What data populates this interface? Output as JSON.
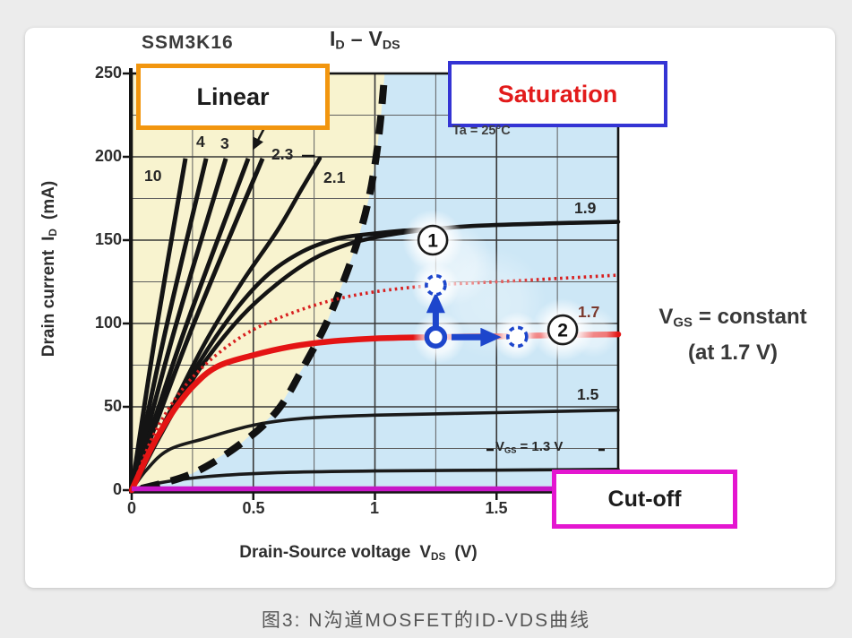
{
  "page": {
    "caption": "图3: N沟道MOSFET的ID-VDS曲线"
  },
  "figure": {
    "device": "SSM3K16",
    "title": {
      "i": "I",
      "i_sub": "D",
      "sep": "–",
      "v": "V",
      "v_sub": "DS"
    },
    "condition": "Ta = 25°C",
    "regions": {
      "linear": "Linear",
      "saturation": "Saturation",
      "cutoff": "Cut-off"
    },
    "right_note": {
      "v": "V",
      "v_sub": "GS",
      "rest": "= constant",
      "line2": "(at 1.7 V)"
    },
    "axes": {
      "x": {
        "label": "Drain-Source voltage",
        "sym": "V",
        "sym_sub": "DS",
        "unit": "(V)",
        "ticks": [
          "0",
          "0.5",
          "1",
          "1.5"
        ]
      },
      "y": {
        "label": "Drain current",
        "sym": "I",
        "sym_sub": "D",
        "unit": "(mA)",
        "ticks": [
          "250",
          "200",
          "150",
          "100",
          "50",
          "0"
        ]
      }
    },
    "curve_labels": {
      "l10": "10",
      "l4": "4",
      "l3": "3",
      "l23": "2.3",
      "l21": "2.1",
      "l19": "1.9",
      "l17": "1.7",
      "l15": "1.5",
      "l13": {
        "v": "V",
        "sub": "GS",
        "rest": "= 1.3 V"
      }
    },
    "colors": {
      "linear_fill": "#f8f3cf",
      "saturation_fill": "#cde7f6",
      "red_curve": "#e41414",
      "magenta_line": "#c716c7",
      "annotation_blue": "#1d46cc",
      "linear_border": "#f2960f",
      "saturation_border": "#3434d4",
      "cutoff_border": "#e416d0",
      "saturation_text": "#e21b1b"
    }
  },
  "chart_data": {
    "type": "line",
    "title": "ID - VDS",
    "x_axis": {
      "label": "Drain-Source voltage VDS (V)",
      "range": [
        0,
        2.0
      ],
      "major_tick": 0.5,
      "minor_tick": 0.25,
      "tick_values": [
        0,
        0.5,
        1,
        1.5
      ]
    },
    "y_axis": {
      "label": "Drain current ID (mA)",
      "range": [
        0,
        250
      ],
      "major_tick": 50,
      "minor_tick": 25,
      "tick_values": [
        0,
        50,
        100,
        150,
        200,
        250
      ]
    },
    "series": [
      {
        "name": "VGS=10V",
        "style": "steep",
        "points": [
          [
            0,
            0
          ],
          [
            0.0995,
            95
          ],
          [
            0.221,
            199
          ]
        ]
      },
      {
        "name": "VGS=4V",
        "style": "steep",
        "points": [
          [
            0,
            0
          ],
          [
            0.138,
            95
          ],
          [
            0.306,
            199
          ]
        ]
      },
      {
        "name": "VGS=3V",
        "style": "steep",
        "points": [
          [
            0,
            0
          ],
          [
            0.174,
            95
          ],
          [
            0.387,
            199
          ]
        ]
      },
      {
        "name": "VGS~2.7V",
        "style": "steep",
        "points": [
          [
            0,
            0
          ],
          [
            0.215,
            95
          ],
          [
            0.479,
            199
          ]
        ]
      },
      {
        "name": "VGS~2.5V",
        "style": "steep",
        "points": [
          [
            0,
            0
          ],
          [
            0.242,
            95
          ],
          [
            0.538,
            199
          ]
        ]
      },
      {
        "name": "VGS=2.3V",
        "style": "curve",
        "points": [
          [
            0,
            0
          ],
          [
            0.15,
            45
          ],
          [
            0.3,
            88
          ],
          [
            0.45,
            124
          ],
          [
            0.6,
            156
          ],
          [
            0.7,
            181
          ],
          [
            0.773,
            199
          ]
        ]
      },
      {
        "name": "VGS=2.1V",
        "style": "curve",
        "points": [
          [
            0,
            0
          ],
          [
            0.12,
            35
          ],
          [
            0.25,
            70
          ],
          [
            0.4,
            103
          ],
          [
            0.55,
            128
          ],
          [
            0.7,
            143
          ],
          [
            0.85,
            151
          ],
          [
            1.0,
            154
          ],
          [
            1.1,
            155.5
          ],
          [
            1.21,
            156.5
          ]
        ]
      },
      {
        "name": "VGS=1.9V",
        "style": "curve",
        "points": [
          [
            0,
            0
          ],
          [
            0.1,
            28
          ],
          [
            0.2,
            54
          ],
          [
            0.3,
            77
          ],
          [
            0.45,
            104
          ],
          [
            0.6,
            124
          ],
          [
            0.75,
            139
          ],
          [
            0.9,
            148
          ],
          [
            1.05,
            153
          ],
          [
            1.2,
            156
          ],
          [
            1.4,
            158.5
          ],
          [
            1.7,
            160
          ],
          [
            2.0,
            161
          ]
        ]
      },
      {
        "name": "VGS=1.5V",
        "style": "curve-thin",
        "points": [
          [
            0,
            0
          ],
          [
            0.06,
            12
          ],
          [
            0.15,
            24
          ],
          [
            0.3,
            31
          ],
          [
            0.5,
            39
          ],
          [
            0.7,
            43
          ],
          [
            1.0,
            45
          ],
          [
            1.5,
            46.5
          ],
          [
            2.0,
            48
          ]
        ]
      },
      {
        "name": "VGS=1.3V",
        "style": "curve-thin",
        "points": [
          [
            0,
            0
          ],
          [
            0.1,
            4
          ],
          [
            0.3,
            8
          ],
          [
            0.6,
            10.5
          ],
          [
            1.0,
            11.5
          ],
          [
            1.5,
            12
          ],
          [
            2.0,
            12.5
          ]
        ]
      },
      {
        "name": "VGS=1.7V",
        "style": "red-solid",
        "points": [
          [
            0,
            0
          ],
          [
            0.08,
            25
          ],
          [
            0.16,
            45
          ],
          [
            0.25,
            62
          ],
          [
            0.35,
            74
          ],
          [
            0.5,
            81
          ],
          [
            0.65,
            86
          ],
          [
            0.8,
            89
          ],
          [
            1.0,
            91
          ],
          [
            1.25,
            91.8
          ],
          [
            1.5,
            92.3
          ],
          [
            1.75,
            93
          ],
          [
            2.0,
            93.5
          ]
        ]
      },
      {
        "name": "VGS=1.7V-shifted",
        "style": "red-dotted",
        "points": [
          [
            0,
            0
          ],
          [
            0.08,
            30
          ],
          [
            0.18,
            55
          ],
          [
            0.3,
            75
          ],
          [
            0.45,
            92
          ],
          [
            0.6,
            103
          ],
          [
            0.8,
            113
          ],
          [
            1.0,
            119
          ],
          [
            1.25,
            123
          ],
          [
            1.5,
            125
          ],
          [
            1.75,
            127
          ],
          [
            2.0,
            129
          ]
        ]
      },
      {
        "name": "cutoff-line",
        "style": "cutoff",
        "points": [
          [
            0,
            0.8
          ],
          [
            1.73,
            0.8
          ]
        ]
      },
      {
        "name": "linear-saturation-boundary",
        "style": "boundary",
        "points": [
          [
            0.04,
            1
          ],
          [
            0.25,
            10
          ],
          [
            0.45,
            28
          ],
          [
            0.6,
            48
          ],
          [
            0.71,
            75
          ],
          [
            0.8,
            100
          ],
          [
            0.87,
            125
          ],
          [
            0.93,
            150
          ],
          [
            0.975,
            175
          ],
          [
            1.005,
            200
          ],
          [
            1.025,
            225
          ],
          [
            1.04,
            250
          ]
        ]
      }
    ],
    "annotations": {
      "markers": [
        {
          "type": "solid-ring",
          "x": 1.25,
          "y": 91.8
        },
        {
          "type": "dashed-ring",
          "x": 1.25,
          "y": 123
        },
        {
          "type": "dashed-ring",
          "x": 1.585,
          "y": 92
        }
      ],
      "arrows": [
        {
          "from": [
            1.25,
            96.5
          ],
          "to": [
            1.25,
            114.5
          ]
        },
        {
          "from": [
            1.315,
            91.8
          ],
          "to": [
            1.49,
            91.8
          ]
        }
      ],
      "numbered": [
        {
          "n": "1",
          "x": 1.238,
          "y": 150
        },
        {
          "n": "2",
          "x": 1.772,
          "y": 96.2
        }
      ]
    }
  }
}
